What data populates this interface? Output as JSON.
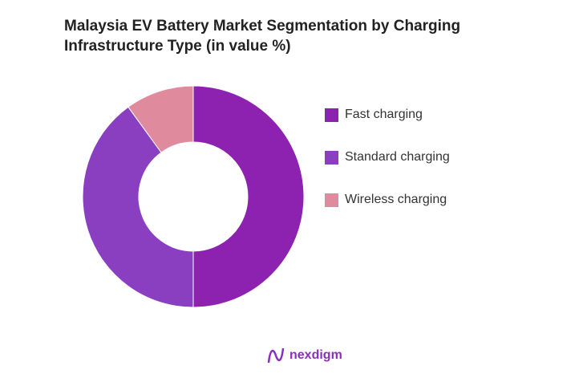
{
  "chart_data": {
    "type": "pie",
    "variant": "donut",
    "title": "Malaysia EV Battery Market Segmentation by Charging Infrastructure Type (in value %)",
    "categories": [
      "Fast charging",
      "Standard charging",
      "Wireless charging"
    ],
    "values": [
      50,
      40,
      10
    ],
    "colors": [
      "#8e22b0",
      "#8a3fc0",
      "#e08a9e"
    ],
    "legend_position": "right"
  },
  "brand": {
    "name": "nexdigm",
    "color": "#8a2fc0"
  }
}
